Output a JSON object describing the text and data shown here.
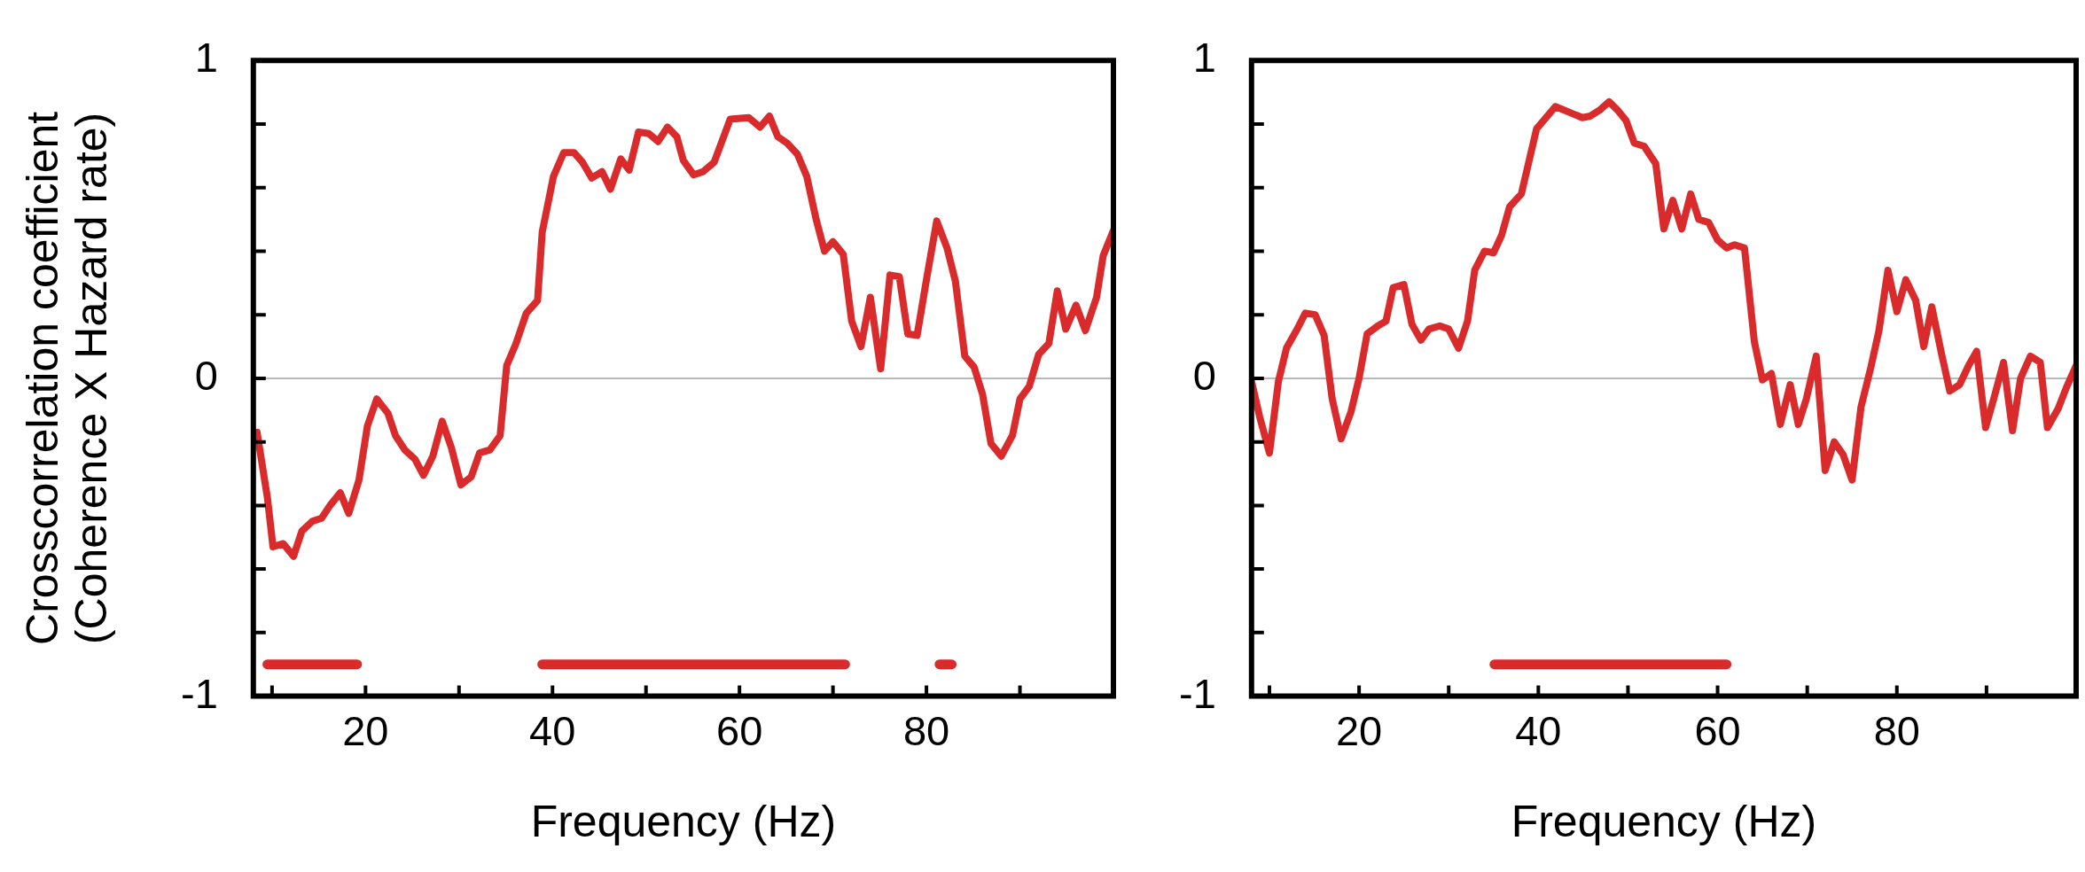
{
  "chart_data": [
    {
      "type": "line",
      "ylabel": "Crosscorrelation coefficient\n(Coherence X Hazard rate)",
      "xlabel": "Frequency (Hz)",
      "xlim": [
        8,
        100
      ],
      "ylim": [
        -1,
        1
      ],
      "xticks": [
        {
          "value": 10,
          "label": null
        },
        20,
        {
          "value": 30,
          "label": null
        },
        40,
        {
          "value": 50,
          "label": null
        },
        60,
        {
          "value": 70,
          "label": null
        },
        80,
        {
          "value": 90,
          "label": null
        }
      ],
      "yticks": [
        -1,
        {
          "value": -0.8,
          "label": null
        },
        {
          "value": -0.6,
          "label": null
        },
        {
          "value": -0.4,
          "label": null
        },
        {
          "value": -0.2,
          "label": null
        },
        0,
        {
          "value": 0.2,
          "label": null
        },
        {
          "value": 0.4,
          "label": null
        },
        {
          "value": 0.6,
          "label": null
        },
        {
          "value": 0.8,
          "label": null
        },
        1
      ],
      "ref_lines": [
        {
          "axis": "y",
          "value": 0,
          "color": "#a0a0a0"
        }
      ],
      "series": [
        {
          "color": "#d92b2b",
          "x": [
            8.4,
            9.5,
            10.1,
            11.2,
            12.3,
            13.2,
            14.3,
            15.3,
            16.2,
            17.3,
            18.2,
            19.3,
            20.2,
            21.2,
            22.4,
            23.2,
            24.2,
            25.3,
            26.2,
            27.2,
            28.2,
            29.2,
            30.2,
            31.3,
            32.2,
            33.3,
            34.4,
            35.1,
            36.1,
            37.2,
            38.4,
            38.9,
            40.1,
            41.2,
            42.3,
            43.2,
            44.2,
            45.3,
            46.2,
            47.3,
            48.2,
            49.2,
            50.3,
            51.3,
            52.3,
            53.3,
            54.0,
            55.1,
            56.1,
            57.3,
            59.0,
            61.0,
            62.2,
            63.2,
            64.1,
            65.1,
            66.2,
            67.2,
            68.2,
            69.1,
            70.0,
            71.1,
            72.0,
            73.0,
            74.0,
            75.1,
            76.1,
            77.1,
            78.0,
            79.0,
            80.0,
            81.1,
            82.2,
            83.1,
            84.1,
            85.1,
            86.0,
            86.9,
            88.0,
            89.2,
            90.0,
            91.0,
            92.0,
            93.1,
            94.0,
            94.9,
            96.0,
            97.0,
            98.2,
            98.9,
            100
          ],
          "values": [
            -0.17,
            -0.375,
            -0.53,
            -0.52,
            -0.56,
            -0.48,
            -0.45,
            -0.44,
            -0.4,
            -0.36,
            -0.425,
            -0.32,
            -0.15,
            -0.065,
            -0.11,
            -0.18,
            -0.225,
            -0.255,
            -0.305,
            -0.245,
            -0.135,
            -0.22,
            -0.335,
            -0.31,
            -0.235,
            -0.225,
            -0.18,
            0.04,
            0.11,
            0.205,
            0.245,
            0.46,
            0.635,
            0.71,
            0.71,
            0.68,
            0.63,
            0.65,
            0.595,
            0.69,
            0.655,
            0.775,
            0.77,
            0.745,
            0.79,
            0.76,
            0.685,
            0.64,
            0.65,
            0.68,
            0.815,
            0.82,
            0.79,
            0.825,
            0.76,
            0.74,
            0.705,
            0.635,
            0.5,
            0.4,
            0.43,
            0.39,
            0.18,
            0.1,
            0.255,
            0.03,
            0.325,
            0.32,
            0.14,
            0.135,
            0.31,
            0.495,
            0.41,
            0.305,
            0.07,
            0.035,
            -0.05,
            -0.205,
            -0.245,
            -0.18,
            -0.065,
            -0.025,
            0.075,
            0.11,
            0.275,
            0.155,
            0.23,
            0.15,
            0.255,
            0.385,
            0.465
          ]
        },
        {
          "color": "#d92b2b",
          "x": [
            9.5,
            19.1,
            25,
            38.9,
            71.3,
            76,
            81.4,
            82.7
          ],
          "values": [
            -0.9,
            -0.9,
            null,
            -0.9,
            -0.9,
            null,
            -0.9,
            -0.9
          ]
        }
      ]
    },
    {
      "type": "line",
      "xlabel": "Frequency (Hz)",
      "xlim": [
        8,
        100
      ],
      "ylim": [
        -1,
        1
      ],
      "xticks": [
        {
          "value": 10,
          "label": null
        },
        20,
        {
          "value": 30,
          "label": null
        },
        40,
        {
          "value": 50,
          "label": null
        },
        60,
        {
          "value": 70,
          "label": null
        },
        80,
        {
          "value": 90,
          "label": null
        }
      ],
      "yticks": [
        -1,
        {
          "value": -0.8,
          "label": null
        },
        {
          "value": -0.6,
          "label": null
        },
        {
          "value": -0.4,
          "label": null
        },
        {
          "value": -0.2,
          "label": null
        },
        0,
        {
          "value": 0.2,
          "label": null
        },
        {
          "value": 0.4,
          "label": null
        },
        {
          "value": 0.6,
          "label": null
        },
        {
          "value": 0.8,
          "label": null
        },
        1
      ],
      "ref_lines": [
        {
          "axis": "y",
          "value": 0,
          "color": "#a0a0a0"
        }
      ],
      "series": [
        {
          "color": "#d92b2b",
          "x": [
            8,
            8.9,
            10,
            11,
            11.9,
            13.1,
            14,
            15.1,
            16.1,
            17,
            18,
            19.1,
            20,
            20.9,
            22.1,
            23,
            23.8,
            25,
            25.9,
            26.9,
            27.8,
            29,
            30,
            31.1,
            32.1,
            32.9,
            34,
            35,
            35.9,
            36.8,
            38.1,
            39.8,
            41.9,
            43.2,
            44.9,
            45.8,
            46.9,
            47.9,
            48.8,
            49.8,
            50.7,
            51.8,
            53.1,
            54,
            55,
            56,
            57,
            57.9,
            59,
            60,
            61,
            61.9,
            63,
            64.1,
            65,
            66,
            67,
            68.1,
            69,
            69.9,
            71,
            72,
            73,
            74,
            75,
            76,
            77.1,
            78,
            79,
            80,
            81,
            82.1,
            83,
            83.9,
            85,
            85.9,
            87,
            88,
            88.9,
            89.9,
            90.8,
            91.9,
            92.9,
            93.8,
            94.9,
            96,
            96.8,
            98,
            98.9,
            100
          ],
          "values": [
            -0.01,
            -0.12,
            -0.235,
            -0.01,
            0.095,
            0.155,
            0.205,
            0.2,
            0.135,
            -0.065,
            -0.19,
            -0.105,
            0,
            0.14,
            0.165,
            0.18,
            0.285,
            0.295,
            0.17,
            0.12,
            0.155,
            0.165,
            0.155,
            0.095,
            0.18,
            0.34,
            0.4,
            0.395,
            0.45,
            0.54,
            0.58,
            0.785,
            0.855,
            0.84,
            0.82,
            0.825,
            0.845,
            0.87,
            0.845,
            0.81,
            0.74,
            0.73,
            0.675,
            0.47,
            0.56,
            0.47,
            0.58,
            0.5,
            0.49,
            0.435,
            0.41,
            0.42,
            0.41,
            0.115,
            -0.005,
            0.015,
            -0.145,
            -0.02,
            -0.145,
            -0.065,
            0.07,
            -0.29,
            -0.2,
            -0.24,
            -0.32,
            -0.09,
            0.035,
            0.15,
            0.34,
            0.21,
            0.31,
            0.245,
            0.1,
            0.225,
            0.075,
            -0.04,
            -0.02,
            0.04,
            0.085,
            -0.155,
            -0.065,
            0.05,
            -0.165,
            0,
            0.07,
            0.05,
            -0.155,
            -0.095,
            -0.03,
            0.04
          ]
        },
        {
          "color": "#d92b2b",
          "x": [
            35.1,
            61
          ],
          "values": [
            -0.9,
            -0.9
          ]
        }
      ]
    }
  ]
}
